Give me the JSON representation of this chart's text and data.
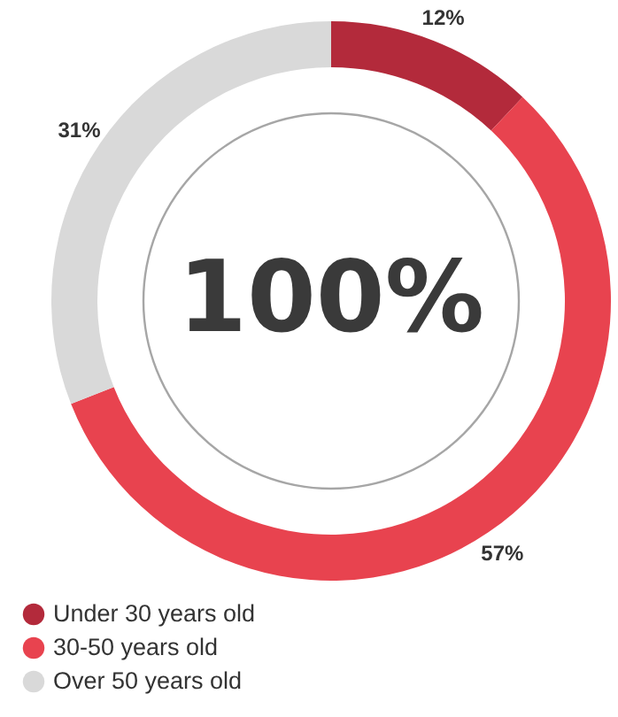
{
  "chart_data": {
    "type": "donut",
    "categories": [
      "Under 30 years old",
      "30-50 years old",
      "Over 50 years old"
    ],
    "values": [
      12,
      57,
      31
    ],
    "colors": [
      "#b32a3b",
      "#e8434f",
      "#d9d9d9"
    ],
    "value_labels": [
      "12%",
      "57%",
      "31%"
    ],
    "annotations": [
      "100%"
    ],
    "legend": "bottom left"
  }
}
